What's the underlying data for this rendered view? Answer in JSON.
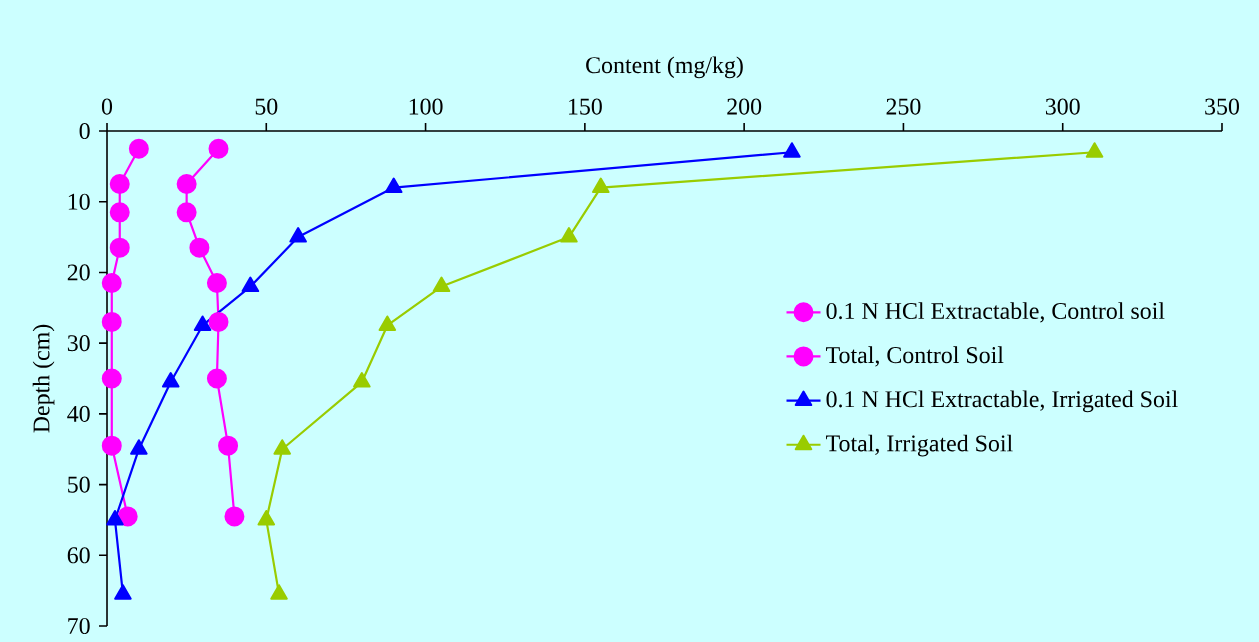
{
  "chart_data": {
    "type": "line",
    "xlabel": "Content (mg/kg)",
    "ylabel": "Depth (cm)",
    "xlim": [
      0,
      350
    ],
    "xticks": [
      0,
      50,
      100,
      150,
      200,
      250,
      300,
      350
    ],
    "ylim": [
      70,
      0
    ],
    "yticks": [
      0,
      10,
      20,
      30,
      40,
      50,
      60,
      70
    ],
    "grid": false,
    "legend": "right",
    "series": [
      {
        "name": "0.1 N HCl Extractable, Control soil",
        "color": "#ff00ff",
        "marker": "circle",
        "x": [
          10,
          4,
          4,
          4,
          1.5,
          1.5,
          1.5,
          1.5,
          6.5
        ],
        "values": [
          2.5,
          7.5,
          11.5,
          16.5,
          21.5,
          27,
          35,
          44.5,
          54.5
        ]
      },
      {
        "name": "Total, Control Soil",
        "color": "#ff00ff",
        "marker": "circle",
        "x": [
          35,
          25,
          25,
          29,
          34.5,
          35,
          34.5,
          38,
          40
        ],
        "values": [
          2.5,
          7.5,
          11.5,
          16.5,
          21.5,
          27,
          35,
          44.5,
          54.5
        ]
      },
      {
        "name": "0.1 N HCl Extractable, Irrigated Soil",
        "color": "#0000ff",
        "marker": "triangle",
        "x": [
          215,
          90,
          60,
          45,
          30,
          20,
          10,
          2.5,
          5
        ],
        "values": [
          3,
          8,
          15,
          22,
          27.5,
          35.5,
          45,
          55,
          65.5
        ]
      },
      {
        "name": "Total, Irrigated Soil",
        "color": "#99cc00",
        "marker": "triangle",
        "x": [
          310,
          155,
          145,
          105,
          88,
          80,
          55,
          50,
          54
        ],
        "values": [
          3,
          8,
          15,
          22,
          27.5,
          35.5,
          45,
          55,
          65.5
        ]
      }
    ]
  }
}
